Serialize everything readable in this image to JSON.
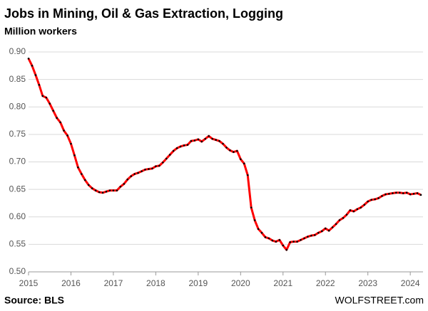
{
  "chart_data": {
    "type": "line",
    "title": "Jobs in Mining, Oil & Gas Extraction, Logging",
    "subtitle": "Million workers",
    "source": "Source: BLS",
    "watermark": "WOLFSTREET.com",
    "x": [
      2015,
      2015.083,
      2015.167,
      2015.25,
      2015.333,
      2015.417,
      2015.5,
      2015.583,
      2015.667,
      2015.75,
      2015.833,
      2015.917,
      2016,
      2016.083,
      2016.167,
      2016.25,
      2016.333,
      2016.417,
      2016.5,
      2016.583,
      2016.667,
      2016.75,
      2016.833,
      2016.917,
      2017,
      2017.083,
      2017.167,
      2017.25,
      2017.333,
      2017.417,
      2017.5,
      2017.583,
      2017.667,
      2017.75,
      2017.833,
      2017.917,
      2018,
      2018.083,
      2018.167,
      2018.25,
      2018.333,
      2018.417,
      2018.5,
      2018.583,
      2018.667,
      2018.75,
      2018.833,
      2018.917,
      2019,
      2019.083,
      2019.167,
      2019.25,
      2019.333,
      2019.417,
      2019.5,
      2019.583,
      2019.667,
      2019.75,
      2019.833,
      2019.917,
      2020,
      2020.083,
      2020.167,
      2020.25,
      2020.333,
      2020.417,
      2020.5,
      2020.583,
      2020.667,
      2020.75,
      2020.833,
      2020.917,
      2021,
      2021.083,
      2021.167,
      2021.25,
      2021.333,
      2021.417,
      2021.5,
      2021.583,
      2021.667,
      2021.75,
      2021.833,
      2021.917,
      2022,
      2022.083,
      2022.167,
      2022.25,
      2022.333,
      2022.417,
      2022.5,
      2022.583,
      2022.667,
      2022.75,
      2022.833,
      2022.917,
      2023,
      2023.083,
      2023.167,
      2023.25,
      2023.333,
      2023.417,
      2023.5,
      2023.583,
      2023.667,
      2023.75,
      2023.833,
      2023.917,
      2024,
      2024.083,
      2024.167,
      2024.25
    ],
    "series": [
      {
        "color": "#ff0000",
        "marker_color": "#000000",
        "values": [
          0.888,
          0.875,
          0.858,
          0.84,
          0.82,
          0.817,
          0.806,
          0.793,
          0.78,
          0.772,
          0.757,
          0.748,
          0.733,
          0.712,
          0.69,
          0.678,
          0.667,
          0.658,
          0.652,
          0.648,
          0.645,
          0.644,
          0.646,
          0.648,
          0.648,
          0.648,
          0.655,
          0.66,
          0.668,
          0.674,
          0.678,
          0.68,
          0.683,
          0.686,
          0.687,
          0.688,
          0.692,
          0.693,
          0.699,
          0.706,
          0.713,
          0.72,
          0.725,
          0.728,
          0.73,
          0.731,
          0.738,
          0.739,
          0.741,
          0.737,
          0.742,
          0.747,
          0.742,
          0.74,
          0.738,
          0.733,
          0.726,
          0.721,
          0.718,
          0.72,
          0.705,
          0.697,
          0.676,
          0.617,
          0.594,
          0.578,
          0.571,
          0.563,
          0.561,
          0.557,
          0.555,
          0.558,
          0.548,
          0.54,
          0.554,
          0.555,
          0.555,
          0.558,
          0.561,
          0.564,
          0.566,
          0.567,
          0.571,
          0.574,
          0.579,
          0.575,
          0.581,
          0.587,
          0.594,
          0.598,
          0.604,
          0.612,
          0.61,
          0.614,
          0.617,
          0.622,
          0.628,
          0.631,
          0.632,
          0.634,
          0.638,
          0.641,
          0.642,
          0.643,
          0.644,
          0.644,
          0.643,
          0.644,
          0.641,
          0.642,
          0.643,
          0.64
        ]
      }
    ],
    "xlim": [
      2015,
      2024.3
    ],
    "xticks": [
      2015,
      2016,
      2017,
      2018,
      2019,
      2020,
      2021,
      2022,
      2023,
      2024
    ],
    "ylim": [
      0.5,
      0.9
    ],
    "yticks": [
      {
        "value": 0.5,
        "label": "0.50"
      },
      {
        "value": 0.55,
        "label": "0.55"
      },
      {
        "value": 0.6,
        "label": "0.60"
      },
      {
        "value": 0.65,
        "label": "0.65"
      },
      {
        "value": 0.7,
        "label": "0.70"
      },
      {
        "value": 0.75,
        "label": "0.75"
      },
      {
        "value": 0.8,
        "label": "0.80"
      },
      {
        "value": 0.85,
        "label": "0.85"
      },
      {
        "value": 0.9,
        "label": "0.90"
      }
    ],
    "grid": true
  }
}
